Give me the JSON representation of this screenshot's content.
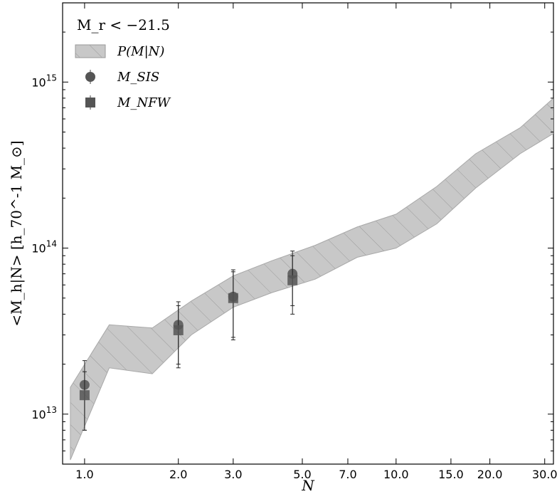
{
  "chart_data": {
    "type": "line",
    "title": "",
    "annotation": "M_r < −21.5",
    "xlabel": "N",
    "ylabel": "<M_h|N> [h_70^-1 M_⊙]",
    "xscale": "log",
    "yscale": "log",
    "xlim": [
      0.85,
      32
    ],
    "ylim": [
      5000000000000.0,
      3000000000000000.0
    ],
    "x_ticks": [
      1.0,
      2.0,
      3.0,
      5.0,
      7.0,
      10.0,
      15.0,
      20.0,
      30.0
    ],
    "x_tick_labels": [
      "1.0",
      "2.0",
      "3.0",
      "5.0",
      "7.0",
      "10.0",
      "15.0",
      "20.0",
      "30.0"
    ],
    "y_ticks": [
      10000000000000.0,
      100000000000000.0,
      1000000000000000.0
    ],
    "y_tick_labels": [
      {
        "base": "10",
        "exp": "13"
      },
      {
        "base": "10",
        "exp": "14"
      },
      {
        "base": "10",
        "exp": "15"
      }
    ],
    "legend_position": "top-left",
    "legend": [
      {
        "label": "P(M|N)",
        "marker": "band"
      },
      {
        "label": "M_SIS",
        "marker": "circle"
      },
      {
        "label": "M_NFW",
        "marker": "square"
      }
    ],
    "band": {
      "name": "P(M|N)",
      "color": "#c8c8c8",
      "x": [
        0.9,
        1.2,
        1.65,
        2.2,
        3.0,
        4.0,
        5.5,
        7.5,
        10.0,
        13.5,
        18.0,
        25.0,
        32.0
      ],
      "upper": [
        14500000000000.0,
        34500000000000.0,
        33000000000000.0,
        48000000000000.0,
        68000000000000.0,
        84000000000000.0,
        104000000000000.0,
        134000000000000.0,
        160000000000000.0,
        235000000000000.0,
        370000000000000.0,
        530000000000000.0,
        800000000000000.0
      ],
      "lower": [
        5300000000000.0,
        19000000000000.0,
        17500000000000.0,
        30000000000000.0,
        44000000000000.0,
        54000000000000.0,
        65000000000000.0,
        88000000000000.0,
        100000000000000.0,
        140000000000000.0,
        230000000000000.0,
        370000000000000.0,
        490000000000000.0
      ]
    },
    "series": [
      {
        "name": "M_SIS",
        "marker": "circle",
        "color": "#555555",
        "x": [
          1.0,
          2.0,
          3.0,
          4.65
        ],
        "y": [
          15000000000000.0,
          34500000000000.0,
          51000000000000.0,
          70000000000000.0
        ],
        "y_err_low": [
          7000000000000.0,
          14500000000000.0,
          22000000000000.0,
          25000000000000.0
        ],
        "y_err_high": [
          6000000000000.0,
          13000000000000.0,
          23000000000000.0,
          26000000000000.0
        ]
      },
      {
        "name": "M_NFW",
        "marker": "square",
        "color": "#555555",
        "x": [
          1.0,
          2.0,
          3.0,
          4.65
        ],
        "y": [
          13000000000000.0,
          32000000000000.0,
          50000000000000.0,
          64000000000000.0
        ],
        "y_err_low": [
          5000000000000.0,
          13000000000000.0,
          22000000000000.0,
          24000000000000.0
        ],
        "y_err_high": [
          5000000000000.0,
          13000000000000.0,
          22000000000000.0,
          26000000000000.0
        ]
      }
    ]
  }
}
